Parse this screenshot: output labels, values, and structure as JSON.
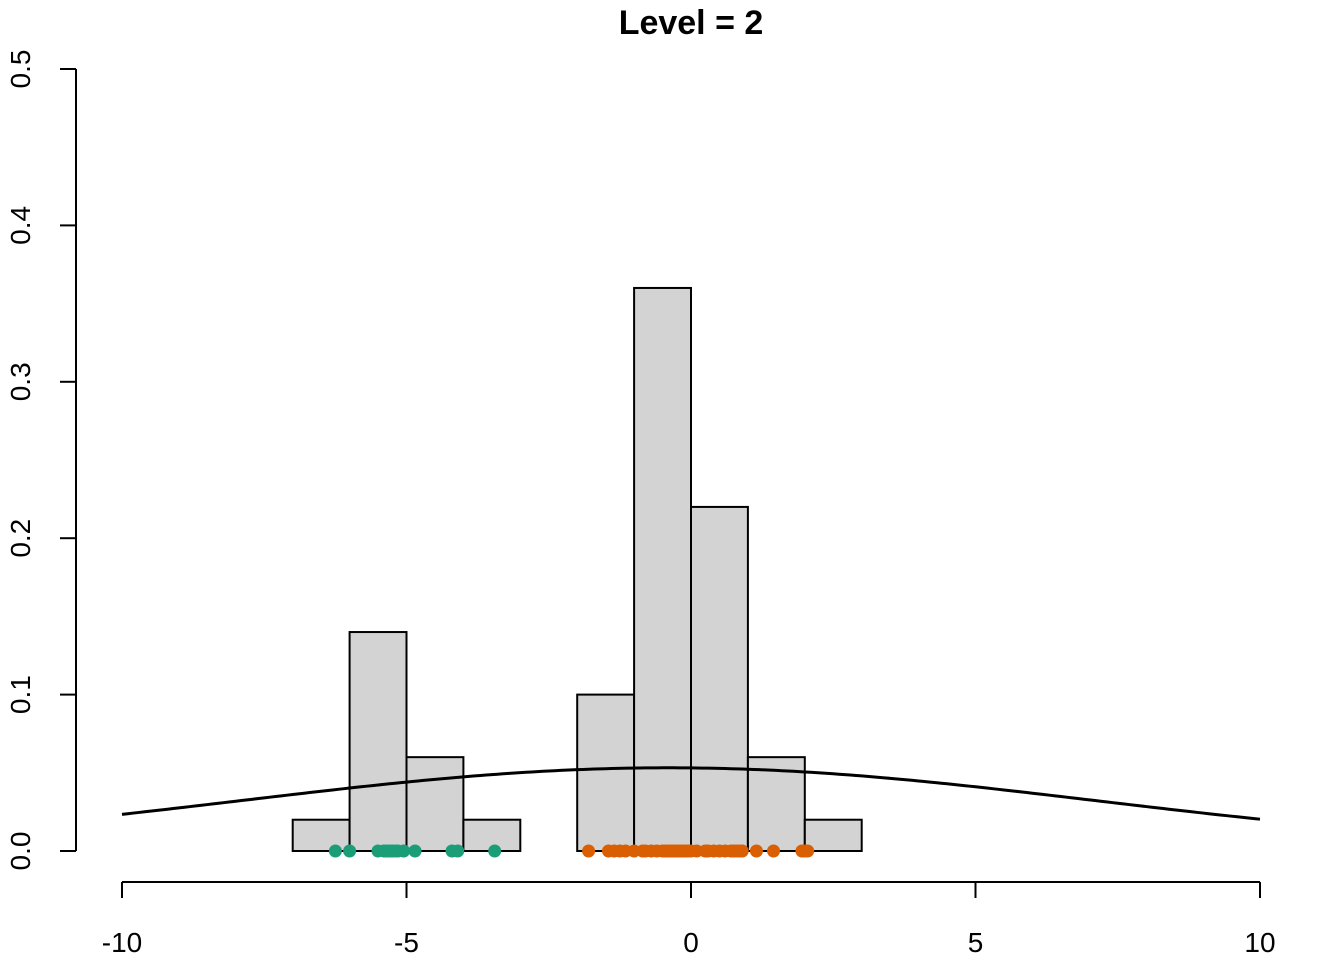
{
  "chart_data": {
    "type": "histogram",
    "title": "Level = 2",
    "xlabel": "",
    "ylabel": "",
    "xlim": [
      -10,
      10
    ],
    "ylim": [
      0,
      0.5
    ],
    "x_ticks": [
      -10,
      -5,
      0,
      5,
      10
    ],
    "y_ticks": [
      0.0,
      0.1,
      0.2,
      0.3,
      0.4,
      0.5
    ],
    "x_tick_labels": [
      "-10",
      "-5",
      "0",
      "5",
      "10"
    ],
    "y_tick_labels": [
      "0.0",
      "0.1",
      "0.2",
      "0.3",
      "0.4",
      "0.5"
    ],
    "bins": [
      {
        "x0": -7,
        "x1": -6,
        "density": 0.02
      },
      {
        "x0": -6,
        "x1": -5,
        "density": 0.14
      },
      {
        "x0": -5,
        "x1": -4,
        "density": 0.06
      },
      {
        "x0": -4,
        "x1": -3,
        "density": 0.02
      },
      {
        "x0": -3,
        "x1": -2,
        "density": 0.0
      },
      {
        "x0": -2,
        "x1": -1,
        "density": 0.1
      },
      {
        "x0": -1,
        "x1": 0,
        "density": 0.36
      },
      {
        "x0": 0,
        "x1": 1,
        "density": 0.22
      },
      {
        "x0": 1,
        "x1": 2,
        "density": 0.06
      },
      {
        "x0": 2,
        "x1": 3,
        "density": 0.02
      }
    ],
    "density_curve": {
      "distribution": "normal",
      "mean": -0.4,
      "sd": 7.5,
      "x_range": [
        -10,
        10
      ]
    },
    "points": [
      {
        "group": "teal",
        "color": "#1b9e77",
        "x": [
          -6.25,
          -6.0,
          -5.5,
          -5.4,
          -5.35,
          -5.3,
          -5.25,
          -5.2,
          -5.15,
          -5.05,
          -4.85,
          -4.2,
          -4.1,
          -3.45
        ]
      },
      {
        "group": "orange",
        "color": "#d95f02",
        "x": [
          -1.8,
          -1.45,
          -1.35,
          -1.25,
          -1.15,
          -1.0,
          -0.85,
          -0.8,
          -0.7,
          -0.6,
          -0.5,
          -0.45,
          -0.4,
          -0.35,
          -0.3,
          -0.25,
          -0.2,
          -0.15,
          -0.1,
          -0.05,
          0.0,
          0.1,
          0.25,
          0.3,
          0.4,
          0.5,
          0.6,
          0.7,
          0.75,
          0.8,
          0.85,
          0.9,
          1.15,
          1.45,
          1.95,
          2.0,
          2.05
        ]
      }
    ],
    "bar_fill": "#d3d3d3",
    "grid": false,
    "legend": "none"
  }
}
